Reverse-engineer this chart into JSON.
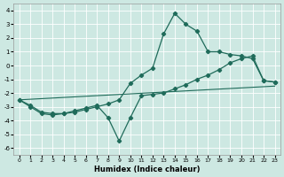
{
  "xlabel": "Humidex (Indice chaleur)",
  "xlim": [
    -0.5,
    23.5
  ],
  "ylim": [
    -6.5,
    4.5
  ],
  "xticks": [
    0,
    1,
    2,
    3,
    4,
    5,
    6,
    7,
    8,
    9,
    10,
    11,
    12,
    13,
    14,
    15,
    16,
    17,
    18,
    19,
    20,
    21,
    22,
    23
  ],
  "yticks": [
    -6,
    -5,
    -4,
    -3,
    -2,
    -1,
    0,
    1,
    2,
    3,
    4
  ],
  "bg_color": "#cde8e2",
  "line_color": "#1f6b5a",
  "grid_color": "#b8d8d0",
  "line1_x": [
    0,
    1,
    2,
    3,
    4,
    5,
    6,
    7,
    8,
    9,
    10,
    11,
    12,
    13,
    14,
    15,
    16,
    17,
    18,
    19,
    20,
    21,
    22,
    23
  ],
  "line1_y": [
    -2.5,
    -3.0,
    -3.5,
    -3.6,
    -3.5,
    -3.4,
    -3.2,
    -3.0,
    -2.8,
    -2.5,
    -1.3,
    -0.7,
    -0.2,
    2.3,
    3.8,
    3.0,
    2.5,
    1.0,
    1.0,
    0.8,
    0.7,
    0.5,
    -1.1,
    -1.2
  ],
  "line2_x": [
    0,
    1,
    2,
    3,
    4,
    5,
    6,
    7,
    8,
    9,
    10,
    11,
    12,
    13,
    14,
    15,
    16,
    17,
    18,
    19,
    20,
    21,
    22,
    23
  ],
  "line2_y": [
    -2.5,
    -2.9,
    -3.4,
    -3.5,
    -3.5,
    -3.3,
    -3.1,
    -2.9,
    -3.8,
    -5.5,
    -3.8,
    -2.2,
    -2.1,
    -2.0,
    -1.7,
    -1.4,
    -1.0,
    -0.7,
    -0.3,
    0.2,
    0.5,
    0.7,
    -1.1,
    -1.2
  ],
  "line3_x": [
    0,
    23
  ],
  "line3_y": [
    -2.5,
    -1.5
  ]
}
